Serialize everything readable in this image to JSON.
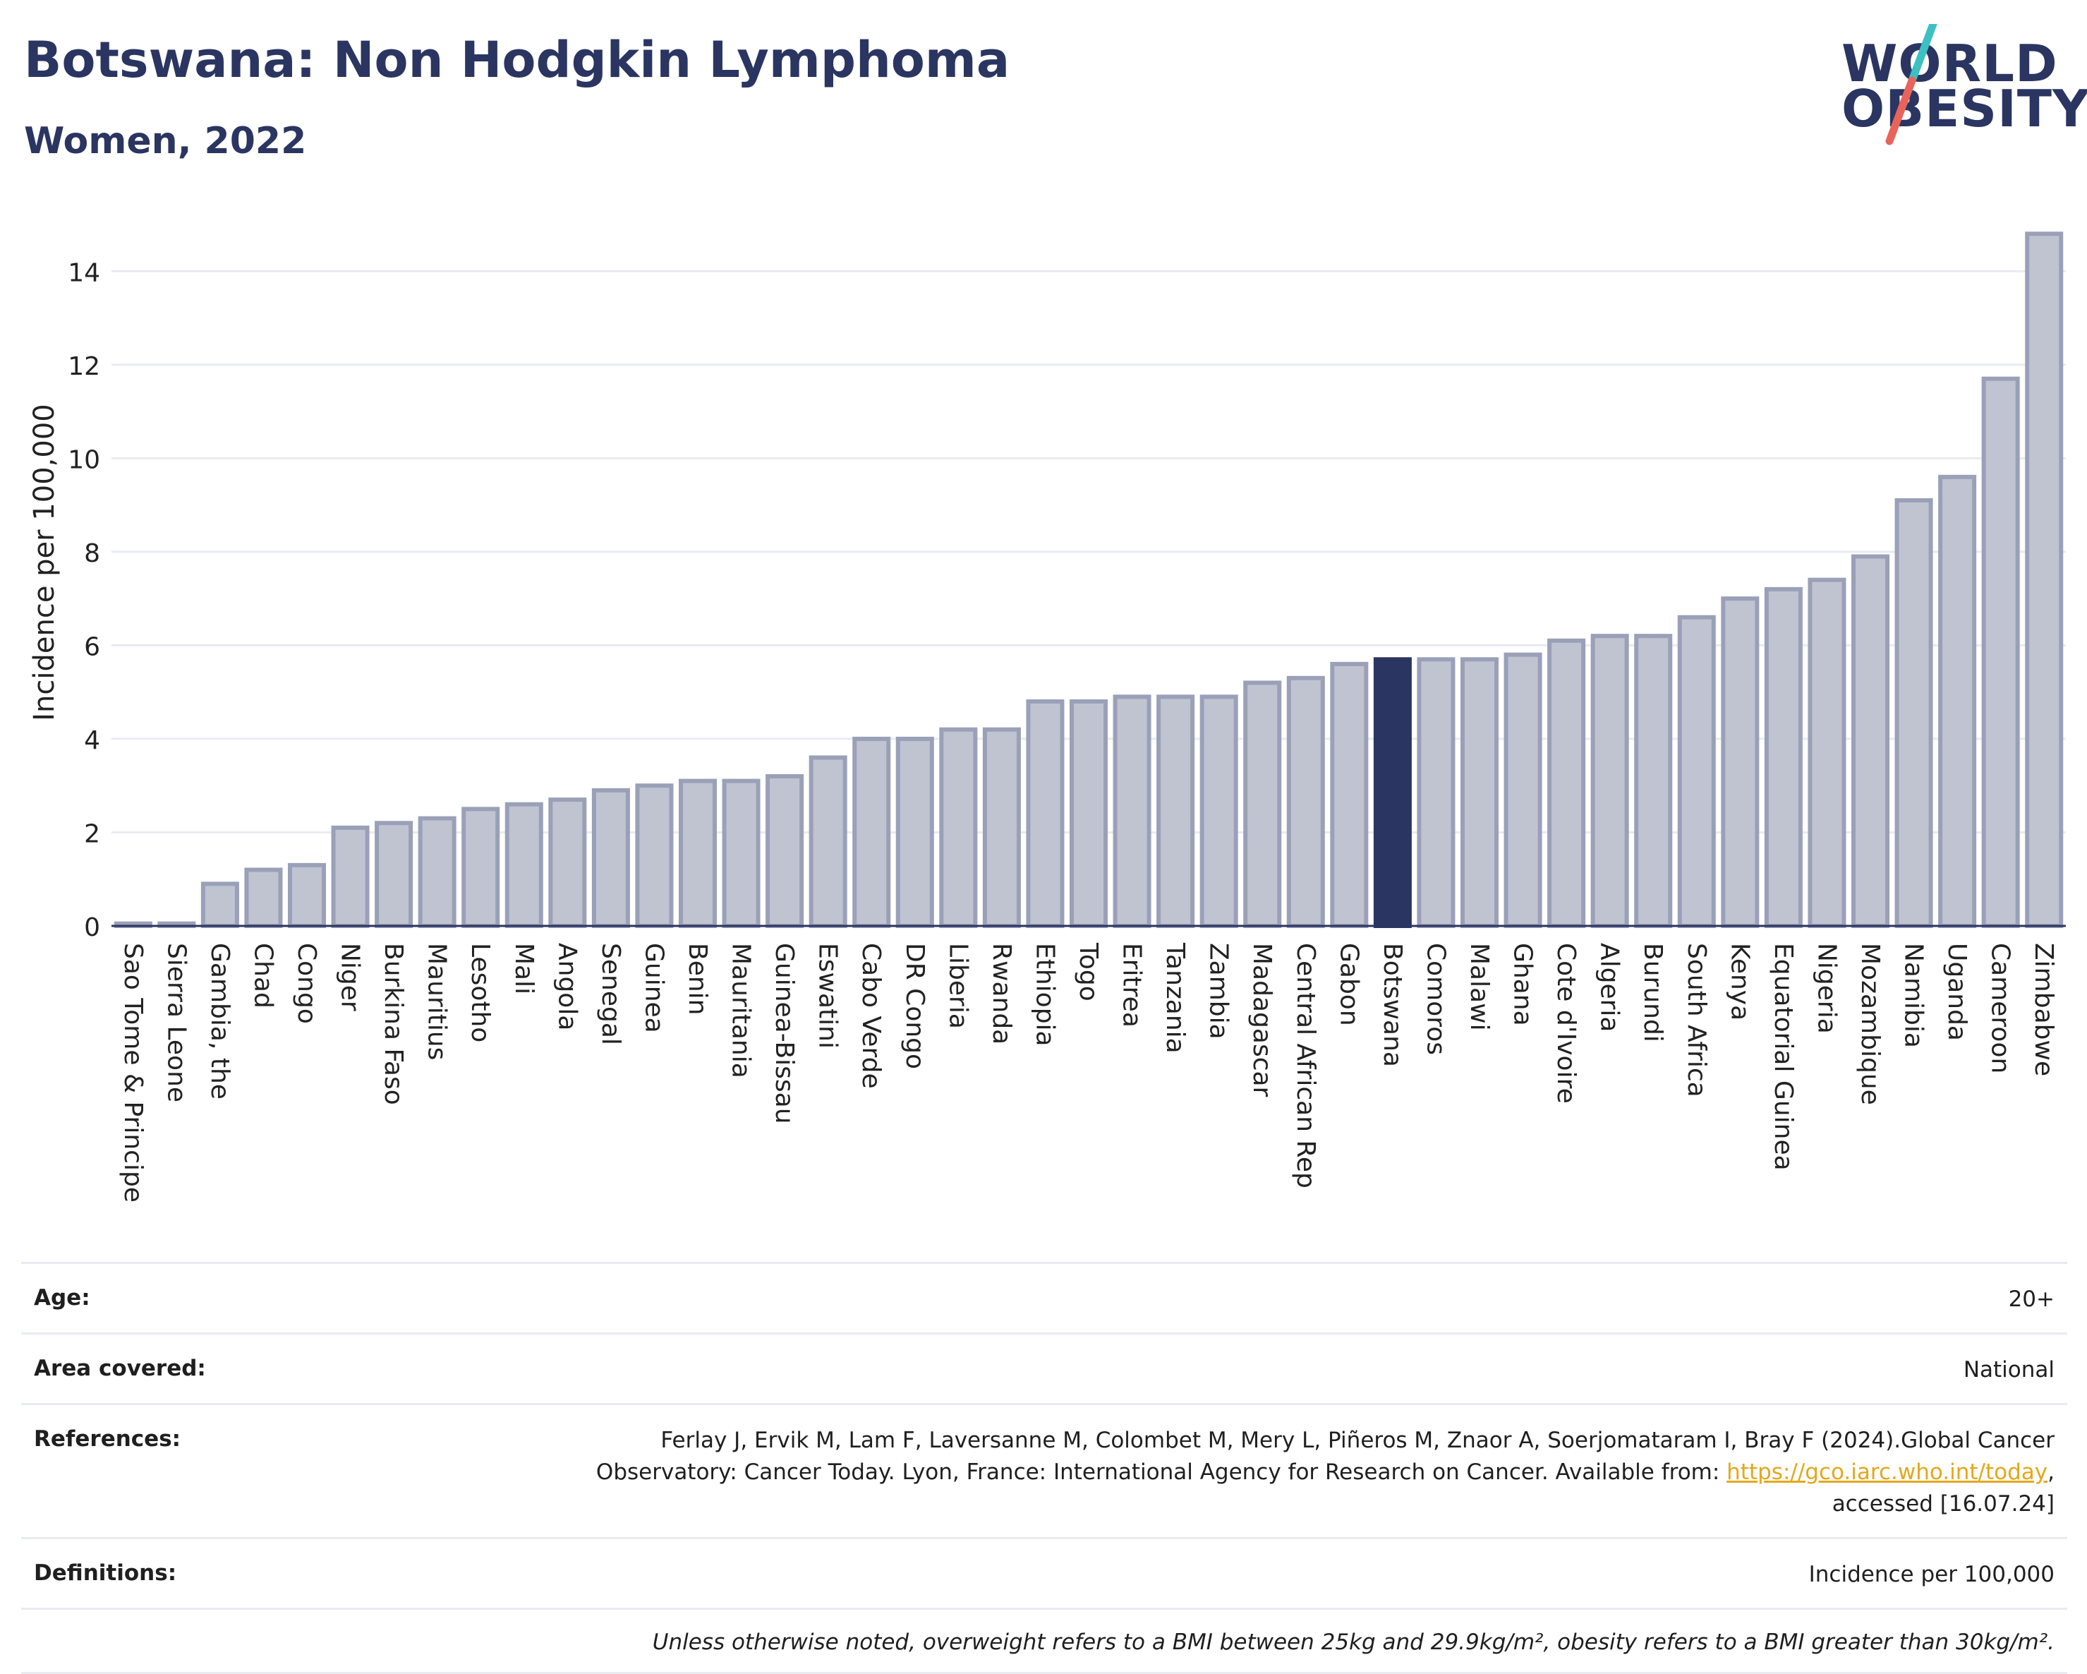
{
  "header": {
    "title": "Botswana: Non Hodgkin Lymphoma",
    "subtitle": "Women, 2022"
  },
  "logo": {
    "line1": "WORLD",
    "line2": "OBESITY",
    "colors": {
      "text": "#2b3561",
      "slash_top": "#3cc1c2",
      "slash_bottom": "#e8645a"
    }
  },
  "chart_data": {
    "type": "bar",
    "ylabel": "Incidence per 100,000",
    "xlabel": "",
    "ylim": [
      0,
      15
    ],
    "yticks": [
      0,
      2,
      4,
      6,
      8,
      10,
      12,
      14
    ],
    "grid": true,
    "highlight": "Botswana",
    "colors": {
      "bar": "#c0c4d1",
      "bar_edge": "#9aa0b8",
      "highlight": "#2b3561",
      "grid": "#e8ebf1",
      "axis": "#2b3561"
    },
    "categories": [
      "Sao Tome & Principe",
      "Sierra Leone",
      "Gambia, the",
      "Chad",
      "Congo",
      "Niger",
      "Burkina Faso",
      "Mauritius",
      "Lesotho",
      "Mali",
      "Angola",
      "Senegal",
      "Guinea",
      "Benin",
      "Mauritania",
      "Guinea-Bissau",
      "Eswatini",
      "Cabo Verde",
      "DR Congo",
      "Liberia",
      "Rwanda",
      "Ethiopia",
      "Togo",
      "Eritrea",
      "Tanzania",
      "Zambia",
      "Madagascar",
      "Central African Rep",
      "Gabon",
      "Botswana",
      "Comoros",
      "Malawi",
      "Ghana",
      "Cote d'Ivoire",
      "Algeria",
      "Burundi",
      "South Africa",
      "Kenya",
      "Equatorial Guinea",
      "Nigeria",
      "Mozambique",
      "Namibia",
      "Uganda",
      "Cameroon",
      "Zimbabwe"
    ],
    "values": [
      0.05,
      0.05,
      0.9,
      1.2,
      1.3,
      2.1,
      2.2,
      2.3,
      2.5,
      2.6,
      2.7,
      2.9,
      3.0,
      3.1,
      3.1,
      3.2,
      3.6,
      4.0,
      4.0,
      4.2,
      4.2,
      4.8,
      4.8,
      4.9,
      4.9,
      4.9,
      5.2,
      5.3,
      5.6,
      5.7,
      5.7,
      5.7,
      5.8,
      6.1,
      6.2,
      6.2,
      6.6,
      7.0,
      7.2,
      7.4,
      7.9,
      9.1,
      9.6,
      11.7,
      14.8
    ]
  },
  "info": {
    "age_label": "Age:",
    "age_value": "20+",
    "area_label": "Area covered:",
    "area_value": "National",
    "references_label": "References:",
    "references_line1": "Ferlay J, Ervik M, Lam F, Laversanne M, Colombet M, Mery L, Piñeros M, Znaor A, Soerjomataram I, Bray F (2024).Global Cancer",
    "references_line2_pre": "Observatory: Cancer Today. Lyon, France: International Agency for Research on Cancer. Available from: ",
    "references_link": "https://gco.iarc.who.int/today",
    "references_line2_post": ",",
    "references_line3": "accessed [16.07.24]",
    "definitions_label": "Definitions:",
    "definitions_value": "Incidence per 100,000",
    "note": "Unless otherwise noted, overweight refers to a BMI between 25kg and 29.9kg/m², obesity refers to a BMI greater than 30kg/m²."
  }
}
